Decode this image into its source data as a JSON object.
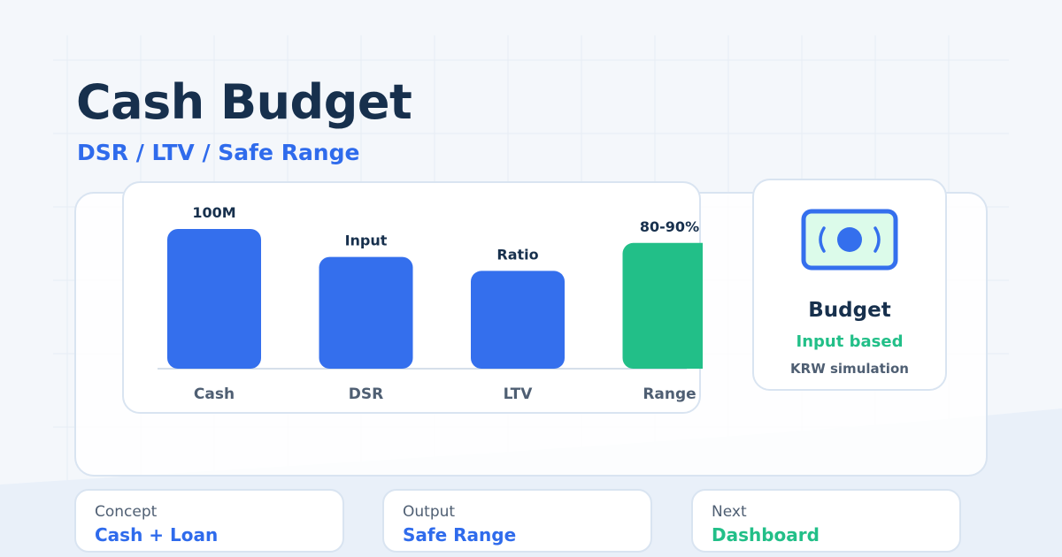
{
  "header": {
    "title": "Cash Budget",
    "subtitle": "DSR / LTV / Safe Range"
  },
  "colors": {
    "navy": "#17304d",
    "blue": "#346fed",
    "green": "#22bf88",
    "muted": "#4f5f73"
  },
  "chart_data": {
    "type": "bar",
    "categories": [
      "Cash",
      "DSR",
      "LTV",
      "Range"
    ],
    "values": [
      100,
      80,
      70,
      90
    ],
    "data_labels": [
      "100M",
      "Input",
      "Ratio",
      "80-90%"
    ],
    "bar_colors": [
      "#346fed",
      "#346fed",
      "#346fed",
      "#22bf88"
    ],
    "ylim": [
      0,
      100
    ],
    "title": "",
    "xlabel": "",
    "ylabel": "",
    "grid": false
  },
  "budget_card": {
    "icon": "money-bill-icon",
    "title": "Budget",
    "subtitle": "Input based",
    "note": "KRW simulation"
  },
  "info_cards": [
    {
      "label": "Concept",
      "value": "Cash + Loan"
    },
    {
      "label": "Output",
      "value": "Safe Range"
    },
    {
      "label": "Next",
      "value": "Dashboard"
    }
  ]
}
